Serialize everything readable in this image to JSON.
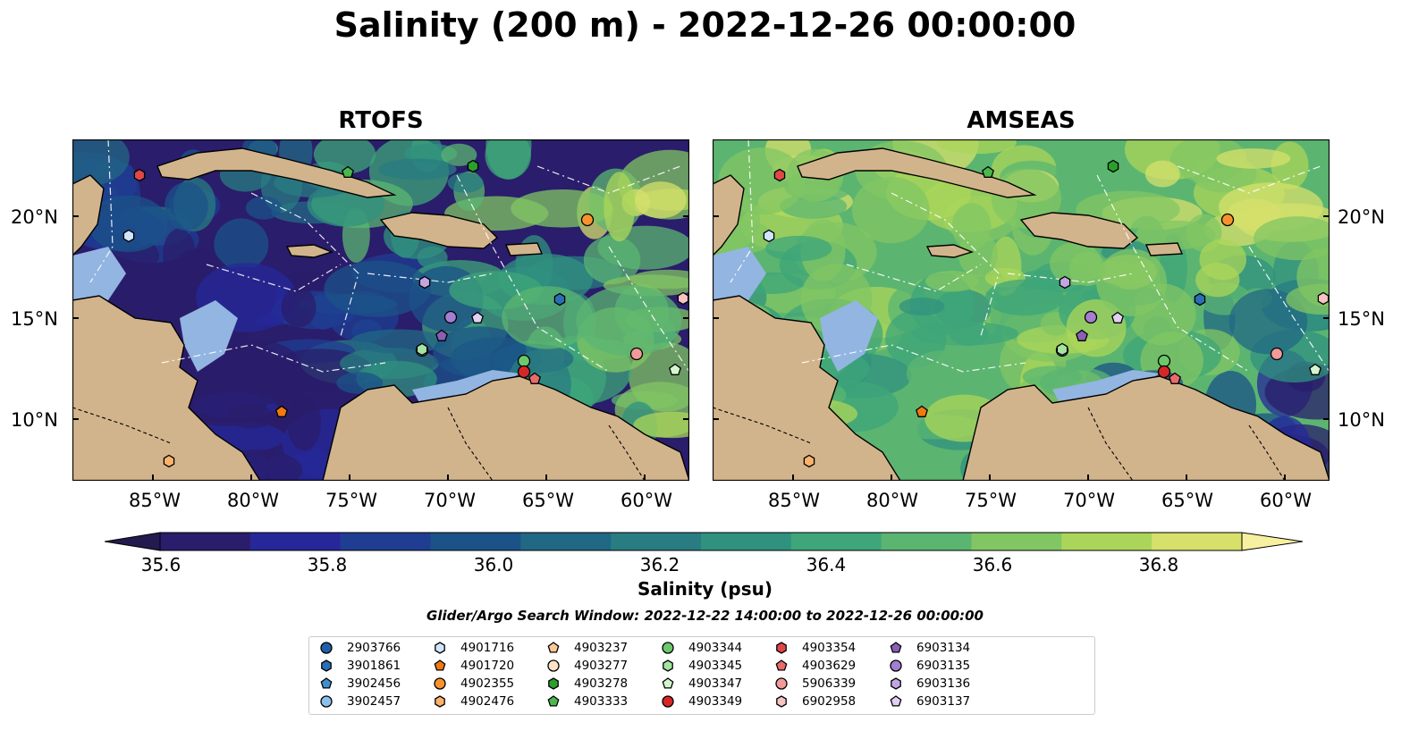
{
  "title": "Salinity (200 m) - 2022-12-26 00:00:00",
  "panels": [
    {
      "title": "RTOFS"
    },
    {
      "title": "AMSEAS"
    }
  ],
  "lat_labels": [
    "20°N",
    "15°N",
    "10°N"
  ],
  "lon_labels": [
    "85°W",
    "80°W",
    "75°W",
    "70°W",
    "65°W",
    "60°W"
  ],
  "colorbar": {
    "label": "Salinity (psu)",
    "ticks": [
      "35.6",
      "35.8",
      "36.0",
      "36.2",
      "36.4",
      "36.6",
      "36.8"
    ],
    "min": 35.6,
    "max": 36.9,
    "extend": "both",
    "colors": [
      "#2a1d6b",
      "#26289a",
      "#1f3e91",
      "#1b5388",
      "#216884",
      "#287c82",
      "#30917f",
      "#3ea67a",
      "#5bb571",
      "#82c663",
      "#abd55a",
      "#d6e06b"
    ],
    "under_color": "#231a4f",
    "over_color": "#f7f0a0"
  },
  "search_window": "Glider/Argo Search Window: 2022-12-22 14:00:00 to 2022-12-26 00:00:00",
  "legend": [
    {
      "id": "2903766",
      "marker": "circle",
      "color": "#1f5fa8"
    },
    {
      "id": "3901861",
      "marker": "hexagon",
      "color": "#2a6fb5"
    },
    {
      "id": "3902456",
      "marker": "pentagon",
      "color": "#3f8fd0"
    },
    {
      "id": "3902457",
      "marker": "circle",
      "color": "#8cc0ec"
    },
    {
      "id": "4901716",
      "marker": "hexagon",
      "color": "#cfe6fb"
    },
    {
      "id": "4901720",
      "marker": "pentagon",
      "color": "#f07a10"
    },
    {
      "id": "4902355",
      "marker": "circle",
      "color": "#f7922e"
    },
    {
      "id": "4902476",
      "marker": "hexagon",
      "color": "#fbb26a"
    },
    {
      "id": "4903237",
      "marker": "pentagon",
      "color": "#fcc994"
    },
    {
      "id": "4903277",
      "marker": "circle",
      "color": "#fde3c6"
    },
    {
      "id": "4903278",
      "marker": "hexagon",
      "color": "#2aa02a"
    },
    {
      "id": "4903333",
      "marker": "pentagon",
      "color": "#4cb84c"
    },
    {
      "id": "4903344",
      "marker": "circle",
      "color": "#6cc86c"
    },
    {
      "id": "4903345",
      "marker": "hexagon",
      "color": "#a5e3a0"
    },
    {
      "id": "4903347",
      "marker": "pentagon",
      "color": "#d4f5cf"
    },
    {
      "id": "4903349",
      "marker": "circle",
      "color": "#d62728"
    },
    {
      "id": "4903354",
      "marker": "hexagon",
      "color": "#e04848"
    },
    {
      "id": "4903629",
      "marker": "pentagon",
      "color": "#ea6a6a"
    },
    {
      "id": "5906339",
      "marker": "circle",
      "color": "#f29a9a"
    },
    {
      "id": "6902958",
      "marker": "hexagon",
      "color": "#f7c3c3"
    },
    {
      "id": "6903134",
      "marker": "pentagon",
      "color": "#8a5fb5"
    },
    {
      "id": "6903135",
      "marker": "circle",
      "color": "#a47ed0"
    },
    {
      "id": "6903136",
      "marker": "hexagon",
      "color": "#c2a6e2"
    },
    {
      "id": "6903137",
      "marker": "pentagon",
      "color": "#e0d0f3"
    }
  ],
  "colors": {
    "land": "#d2b48c",
    "ocean_shallow": "#93b5e1",
    "sea_label_gray": "#3c3c3c"
  }
}
